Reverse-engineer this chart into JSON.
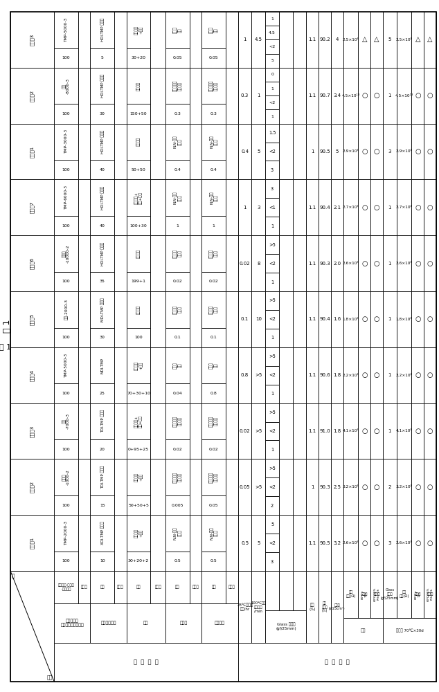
{
  "title": "表 1",
  "col_headers": [
    "实施例1",
    "实施例2",
    "实施例3",
    "实施例4",
    "实施例5",
    "实施例6",
    "实施例7",
    "比较例1",
    "比较例2",
    "比较例3"
  ],
  "poly_names": [
    "TMP-2000-3",
    "丙二醇\n-1000-2",
    "甘油\n-7000-3",
    "TMP-5000-3",
    "甘油-2000-3",
    "丙二醇\n-10000-2",
    "TMP-6000-3",
    "TMP-3000-3",
    "甘油\n-8000-3",
    "TMP-5000-3"
  ],
  "poly_amts": [
    "100",
    "100",
    "100",
    "100",
    "100",
    "100",
    "100",
    "100",
    "100",
    "100"
  ],
  "iso_names": [
    "XDI-TMP 加成物",
    "TDI-TMP 加成物",
    "TDI-TMP 加成物",
    "MDI-TMP",
    "MDI-TMP 加成物",
    "HDI-TMP 加成物",
    "HDI-TMP 加成物",
    "HDI-TMP 加成物",
    "HDI-TMP 加成物",
    "HDI-TMP 加成物"
  ],
  "iso_amts": [
    "10",
    "15",
    "20",
    "25",
    "30",
    "35",
    "40",
    "40",
    "30",
    "5"
  ],
  "solvent_names": [
    "醋酸乙酯\n+丁醛",
    "醋酸乙酯\n+丁酮",
    "醋酸乙酯+\n甲苯+丁酮",
    "醋酸乙酯\n+丁酮",
    "醋酸乙酯",
    "醋酸乙酯",
    "醋酸乙酯+\n丁酮+丁醛",
    "醋酸乙酯",
    "醋酸乙酯",
    "醋酸乙酯\n+甲苯"
  ],
  "solvent_amts": [
    "30+20+2",
    "50+50+5",
    "0+95+25",
    "70+30+10",
    "100",
    "199+1",
    "100+30",
    "50+50",
    "150+50",
    "30+20"
  ],
  "cat_names": [
    "N,N-二甲\n基苄胺",
    "双三氟甲基\n磺酸亚胺",
    "双三氟甲基\n磺酸亚胺",
    "三乙烯\n二胺",
    "十二烷基\n磺酸钠",
    "十二烷基\n磺酸钠",
    "N,N-二甲\n基苄胺",
    "N,N-二甲\n基苄胺",
    "双三氟甲基\n磺酸亚胺",
    "三乙烯\n二胺"
  ],
  "cat_amts": [
    "0.5",
    "0.005",
    "0.02",
    "0.04",
    "0.1",
    "0.02",
    "1",
    "0.4",
    "0.3",
    "0.05"
  ],
  "anti_names": [
    "N,N-二甲\n基苄胺",
    "双三氟甲基\n磺酸亚胺",
    "双三氟甲基\n磺酸亚胺",
    "三乙烯\n二胺",
    "十二烷基\n磺酸钠",
    "十二烷基\n磺酸钠",
    "N,N-二甲\n基苄胺",
    "N,N-二甲\n基苄胺",
    "双三氟甲基\n磺酸亚胺",
    "三乙烯\n二胺"
  ],
  "anti_amts": [
    "0.5",
    "0.05",
    "0.02",
    "0.8",
    "0.1",
    "0.02",
    "1",
    "0.4",
    "0.3",
    "0.05"
  ],
  "p_store": [
    "0.5",
    "0.05",
    "0.02",
    "0.8",
    "0.1",
    "0.02",
    "1",
    "0.4",
    "0.3",
    "1"
  ],
  "p_cure": [
    "5",
    ">5",
    ">5",
    ">5",
    "10",
    "8",
    "3",
    "5",
    "1",
    "4.5"
  ],
  "p_glass_r1": [
    "5",
    ">5",
    ">5",
    ">5",
    ">5",
    ">5",
    "3",
    "1.5",
    "0",
    "1"
  ],
  "p_glass_r2": [
    "<2",
    "<2",
    "<2",
    "<2",
    "<2",
    "<2",
    "<1",
    "<2",
    "1",
    "4.5"
  ],
  "p_glass_r3": [
    "3",
    "2",
    "1",
    "1",
    "1",
    "1",
    "1",
    "3",
    "<2",
    "<2"
  ],
  "p_glass_r4": [
    "",
    "",
    "",
    "",
    "",
    "",
    "",
    "",
    "1",
    "5"
  ],
  "p_haze": [
    "1.1",
    "1",
    "1.1",
    "1.1",
    "1.1",
    "1.1",
    "1.1",
    "1",
    "1.1",
    "1.1"
  ],
  "p_trans": [
    "90.5",
    "90.3",
    "91.0",
    "90.6",
    "90.4",
    "90.3",
    "90.4",
    "90.5",
    "90.7",
    "90.2"
  ],
  "p_adsorb": [
    "3.2",
    "2.5",
    "1.8",
    "1.8",
    "1.6",
    "2.0",
    "2.1",
    "5",
    "3.4",
    "4"
  ],
  "p_resist": [
    "2.6×10⁸",
    "3.2×10⁸",
    "4.1×10⁸",
    "2.2×10⁸",
    "1.8×10⁸",
    "2.6×10⁸",
    "2.7×10⁸",
    "2.9×10⁸",
    "4.5×10¹³",
    "2.5×10⁸"
  ],
  "p_cont80": [
    "○",
    "○",
    "○",
    "○",
    "○",
    "○",
    "○",
    "○",
    "○",
    "△"
  ],
  "p_cont60": [
    "○",
    "○",
    "○",
    "○",
    "○",
    "○",
    "○",
    "○",
    "○",
    "△"
  ],
  "p_pglass": [
    "3",
    "2",
    "1",
    "1",
    "1",
    "1",
    "1",
    "3",
    "1",
    "5"
  ],
  "p_presist": [
    "2.6×10⁸",
    "3.2×10⁸",
    "4.1×10⁸",
    "2.2×10⁸",
    "1.8×10⁸",
    "2.6×10⁸",
    "2.7×10⁸",
    "2.9×10⁸",
    "4.5×10¹³",
    "2.5×10⁸"
  ],
  "p_pcont80": [
    "○",
    "○",
    "○",
    "○",
    "○",
    "○",
    "○",
    "○",
    "○",
    "△"
  ],
  "p_pcont60": [
    "○",
    "○",
    "○",
    "○",
    "○",
    "○",
    "○",
    "○",
    "○",
    "△"
  ]
}
